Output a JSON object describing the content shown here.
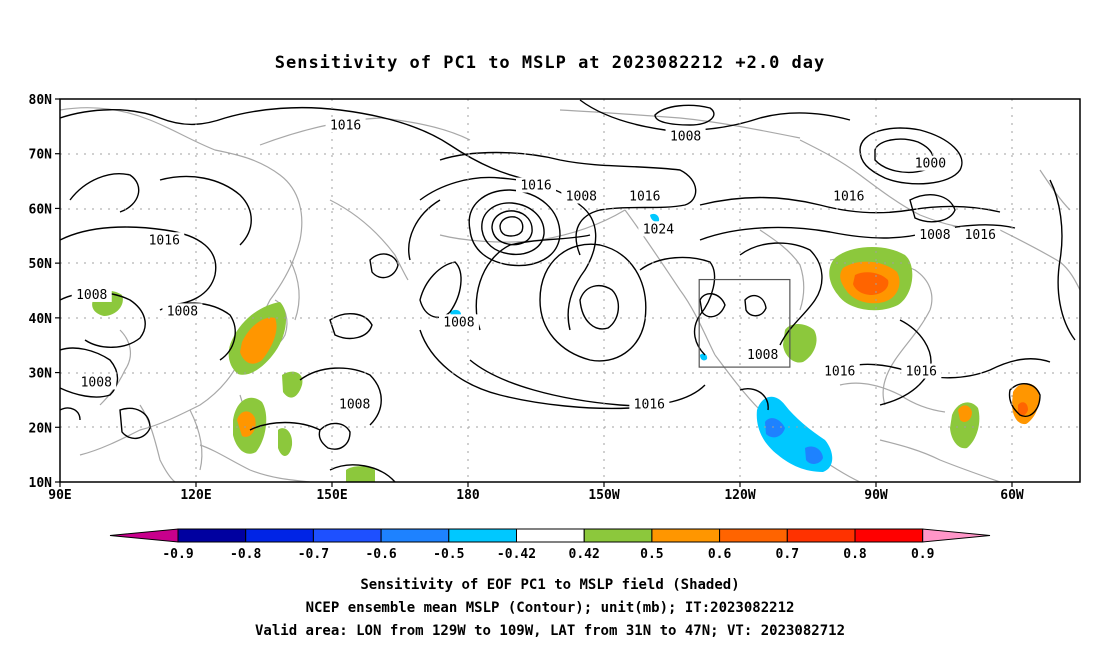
{
  "title": "Sensitivity of PC1 to MSLP at 2023082212 +2.0 day",
  "map": {
    "lat_labels": [
      "80N",
      "70N",
      "60N",
      "50N",
      "40N",
      "30N",
      "20N",
      "10N"
    ],
    "lon_labels": [
      "90E",
      "120E",
      "150E",
      "180",
      "150W",
      "120W",
      "90W",
      "60W"
    ],
    "lat_range": [
      10,
      80
    ],
    "lon_range": [
      90,
      315
    ],
    "gridlines": true,
    "valid_area_box": {
      "lon": [
        231,
        251
      ],
      "lat": [
        31,
        47
      ]
    },
    "contour_labels": [
      {
        "text": "1016",
        "lon": 153,
        "lat": 75
      },
      {
        "text": "1008",
        "lon": 228,
        "lat": 73
      },
      {
        "text": "1000",
        "lon": 282,
        "lat": 68
      },
      {
        "text": "1016",
        "lon": 195,
        "lat": 64
      },
      {
        "text": "1008",
        "lon": 205,
        "lat": 62
      },
      {
        "text": "1016",
        "lon": 219,
        "lat": 62
      },
      {
        "text": "1016",
        "lon": 264,
        "lat": 62
      },
      {
        "text": "1024",
        "lon": 222,
        "lat": 56
      },
      {
        "text": "1008",
        "lon": 283,
        "lat": 55
      },
      {
        "text": "1016",
        "lon": 293,
        "lat": 55
      },
      {
        "text": "1016",
        "lon": 113,
        "lat": 54
      },
      {
        "text": "1008",
        "lon": 97,
        "lat": 44
      },
      {
        "text": "1008",
        "lon": 117,
        "lat": 41
      },
      {
        "text": "1008",
        "lon": 178,
        "lat": 39
      },
      {
        "text": "1008",
        "lon": 245,
        "lat": 33
      },
      {
        "text": "1016",
        "lon": 262,
        "lat": 30
      },
      {
        "text": "1016",
        "lon": 280,
        "lat": 30
      },
      {
        "text": "1008",
        "lon": 98,
        "lat": 28
      },
      {
        "text": "1008",
        "lon": 155,
        "lat": 24
      },
      {
        "text": "1016",
        "lon": 220,
        "lat": 24
      }
    ]
  },
  "colorbar": {
    "labels": [
      "-0.9",
      "-0.8",
      "-0.7",
      "-0.6",
      "-0.5",
      "-0.42",
      "0.42",
      "0.5",
      "0.6",
      "0.7",
      "0.8",
      "0.9"
    ],
    "colors": [
      "#0000a0",
      "#0024e6",
      "#1e50ff",
      "#1e82ff",
      "#00c8ff",
      "#ffffff",
      "#8cc83c",
      "#ff9600",
      "#ff6400",
      "#ff3200",
      "#ff0000"
    ],
    "low_extend_color": "#c8008c",
    "high_extend_color": "#ff96c8"
  },
  "caption": {
    "line1": "Sensitivity of EOF PC1 to MSLP field (Shaded)",
    "line2": "NCEP ensemble mean MSLP (Contour); unit(mb); IT:2023082212",
    "line3": "Valid area: LON from 129W to 109W, LAT from 31N to 47N; VT: 2023082712"
  }
}
